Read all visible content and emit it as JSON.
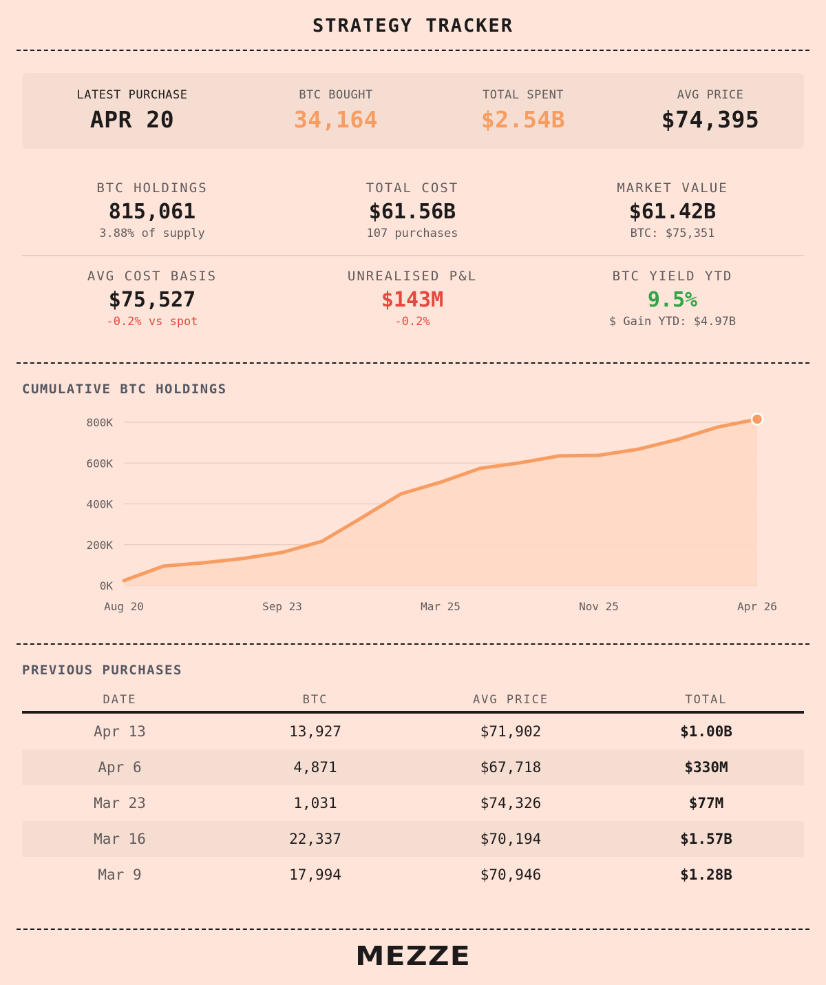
{
  "header": {
    "title": "STRATEGY TRACKER"
  },
  "latest_card": [
    {
      "label": "LATEST PURCHASE",
      "value": "APR 20",
      "tone": "dark"
    },
    {
      "label": "BTC BOUGHT",
      "value": "34,164",
      "tone": "orange"
    },
    {
      "label": "TOTAL SPENT",
      "value": "$2.54B",
      "tone": "orange"
    },
    {
      "label": "AVG PRICE",
      "value": "$74,395",
      "tone": "dark"
    }
  ],
  "stats": [
    {
      "label": "BTC HOLDINGS",
      "value": "815,061",
      "sub": "3.88% of supply"
    },
    {
      "label": "TOTAL COST",
      "value": "$61.56B",
      "sub": "107 purchases"
    },
    {
      "label": "MARKET VALUE",
      "value": "$61.42B",
      "sub": "BTC: $75,351"
    },
    {
      "label": "AVG COST BASIS",
      "value": "$75,527",
      "sub": "-0.2% vs spot"
    },
    {
      "label": "UNREALISED P&L",
      "value": "$143M",
      "sub": "-0.2%"
    },
    {
      "label": "BTC YIELD YTD",
      "value": "9.5%",
      "sub": "$ Gain YTD: $4.97B"
    }
  ],
  "colors": {
    "accent": "#F79D62",
    "negative": "#E5483F",
    "positive": "#2FA54A",
    "background": "#FFE4DA",
    "card": "#F6DDD2"
  },
  "chart_section_title": "CUMULATIVE BTC HOLDINGS",
  "chart_data": {
    "type": "area",
    "title": "CUMULATIVE BTC HOLDINGS",
    "xlabel": "",
    "ylabel": "",
    "x_tick_labels": [
      "Aug 20",
      "Sep 23",
      "Mar 25",
      "Nov 25",
      "Apr 26"
    ],
    "y_tick_labels": [
      "0K",
      "200K",
      "400K",
      "600K",
      "800K"
    ],
    "ylim": [
      0,
      800000
    ],
    "grid": true,
    "legend": "none",
    "series": [
      {
        "name": "BTC Holdings",
        "values": [
          24000,
          95000,
          111000,
          132000,
          162000,
          216000,
          331000,
          449000,
          506000,
          574000,
          601000,
          635000,
          638000,
          668000,
          716000,
          776000,
          815061
        ]
      }
    ],
    "highlight_last_point": true
  },
  "purchases": {
    "title": "PREVIOUS PURCHASES",
    "columns": [
      "DATE",
      "BTC",
      "AVG PRICE",
      "TOTAL"
    ],
    "rows": [
      {
        "date": "Apr 13",
        "btc": "13,927",
        "avg_price": "$71,902",
        "total": "$1.00B"
      },
      {
        "date": "Apr 6",
        "btc": "4,871",
        "avg_price": "$67,718",
        "total": "$330M"
      },
      {
        "date": "Mar 23",
        "btc": "1,031",
        "avg_price": "$74,326",
        "total": "$77M"
      },
      {
        "date": "Mar 16",
        "btc": "22,337",
        "avg_price": "$70,194",
        "total": "$1.57B"
      },
      {
        "date": "Mar 9",
        "btc": "17,994",
        "avg_price": "$70,946",
        "total": "$1.28B"
      }
    ]
  },
  "footer": {
    "logo": "MEZZE"
  }
}
